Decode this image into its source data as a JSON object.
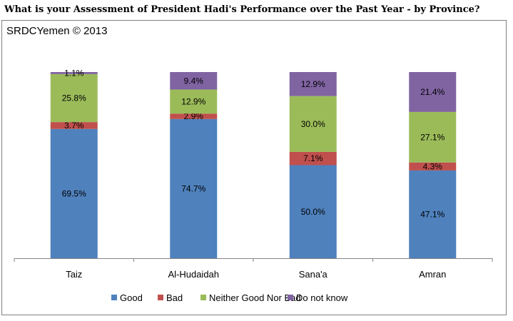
{
  "title": "What is your Assessment of President Hadi's Performance over the Past Year - by Province?",
  "source_label": "SRDCYemen © 2013",
  "chart_data": {
    "type": "bar",
    "stacked": true,
    "percent_stacked": true,
    "categories": [
      "Taiz",
      "Al-Hudaidah",
      "Sana'a",
      "Amran"
    ],
    "series": [
      {
        "name": "Good",
        "color": "#4f81bd",
        "values": [
          69.5,
          74.7,
          50.0,
          47.1
        ],
        "labels": [
          "69.5%",
          "74.7%",
          "50.0%",
          "47.1%"
        ]
      },
      {
        "name": "Bad",
        "color": "#c0504d",
        "values": [
          3.7,
          2.9,
          7.1,
          4.3
        ],
        "labels": [
          "3.7%",
          "2.9%",
          "7.1%",
          "4.3%"
        ]
      },
      {
        "name": "Neither Good Nor Bad",
        "color": "#9bbb59",
        "values": [
          25.8,
          12.9,
          30.0,
          27.1
        ],
        "labels": [
          "25.8%",
          "12.9%",
          "30.0%",
          "27.1%"
        ]
      },
      {
        "name": "Do not know",
        "color": "#8064a2",
        "values": [
          1.1,
          9.4,
          12.9,
          21.4
        ],
        "labels": [
          "1.1%",
          "9.4%",
          "12.9%",
          "21.4%"
        ]
      }
    ],
    "ylim": [
      0,
      100
    ],
    "grid": false,
    "legend": "bottom"
  }
}
